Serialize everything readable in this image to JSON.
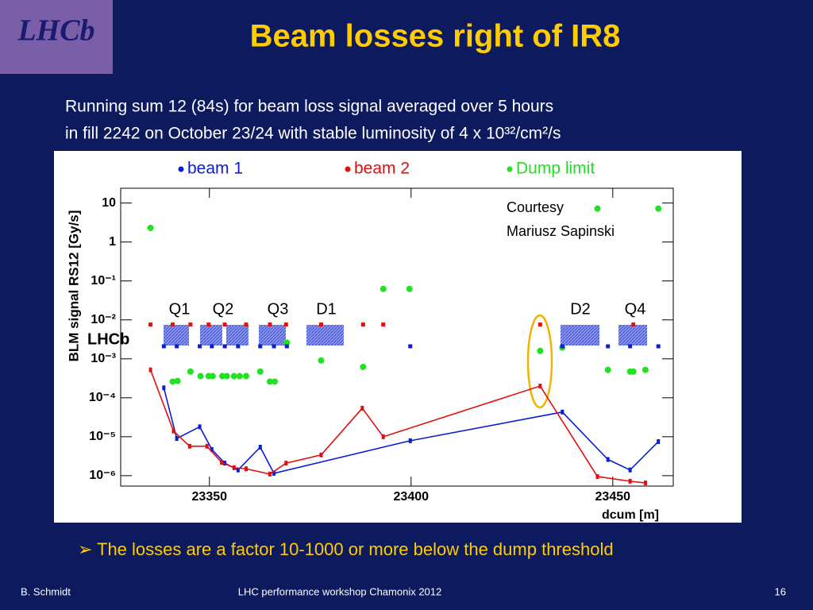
{
  "logo": "LHCb",
  "title": "Beam losses right of IR8",
  "subtitle": [
    "Running sum 12 (84s) for beam loss signal averaged over 5 hours",
    "in fill 2242 on October 23/24 with stable luminosity of 4 x 10³²/cm²/s"
  ],
  "chart_data": {
    "type": "line",
    "x_label": "dcum [m]",
    "y_label": "BLM signal RS12 [Gy/s]",
    "log_y": true,
    "xlim": [
      23328,
      23465
    ],
    "ylim": [
      5.4e-07,
      24
    ],
    "xticks": [
      23350,
      23400,
      23450
    ],
    "yticks": [
      {
        "value": 1e-06,
        "label": "10⁻⁶"
      },
      {
        "value": 1e-05,
        "label": "10⁻⁵"
      },
      {
        "value": 0.0001,
        "label": "10⁻⁴"
      },
      {
        "value": 0.001,
        "label": "10⁻³"
      },
      {
        "value": 0.01,
        "label": "10⁻²"
      },
      {
        "value": 0.1,
        "label": "10⁻¹"
      },
      1,
      10
    ],
    "annotations": [
      "Q1",
      "Q2",
      "Q3",
      "D1",
      "D2",
      "Q4",
      "Courtesy",
      "Mariusz Sapinski",
      "LHCb"
    ],
    "series": [
      {
        "name": "beam 1",
        "color": "#0a1ed2",
        "mode": "line",
        "x": [
          23338.7,
          23341.9,
          23347.6,
          23350.6,
          23353.8,
          23357.1,
          23362.6,
          23366.0,
          23399.8,
          23437.5,
          23448.8,
          23454.3,
          23461.3
        ],
        "values": [
          0.00018,
          9e-06,
          1.8e-05,
          4.7e-06,
          2.1e-06,
          1.4e-06,
          5.4e-06,
          1.15e-06,
          7.9e-06,
          4.3e-05,
          2.6e-06,
          1.4e-06,
          7.5e-06
        ]
      },
      {
        "name": "beam 2",
        "color": "#e01010",
        "mode": "line",
        "x": [
          23335.4,
          23341.1,
          23345.1,
          23349.4,
          23353.0,
          23356.1,
          23359.1,
          23365.0,
          23369.0,
          23377.7,
          23387.9,
          23393.1,
          23432.0,
          23446.2,
          23454.3,
          23458.1
        ],
        "values": [
          0.00052,
          1.4e-05,
          5.7e-06,
          5.7e-06,
          2.2e-06,
          1.6e-06,
          1.5e-06,
          1.1e-06,
          2.1e-06,
          3.4e-06,
          5.4e-05,
          1e-05,
          0.0002,
          9.5e-07,
          7.2e-07,
          6.5e-07
        ]
      },
      {
        "name": "Dump limit",
        "color": "#22e022",
        "mode": "points",
        "x": [
          23335.4,
          23340.9,
          23342.1,
          23345.3,
          23347.8,
          23349.8,
          23350.8,
          23353.2,
          23354.3,
          23356.1,
          23357.5,
          23359.1,
          23362.6,
          23365.0,
          23366.2,
          23369.2,
          23377.7,
          23388.1,
          23393.1,
          23399.6,
          23432.0,
          23437.5,
          23446.2,
          23448.8,
          23454.3,
          23455.1,
          23458.1,
          23461.3
        ],
        "values": [
          2.3,
          0.00026,
          0.00027,
          0.00047,
          0.00036,
          0.00036,
          0.00036,
          0.00036,
          0.00036,
          0.00036,
          0.00036,
          0.00036,
          0.00047,
          0.00026,
          0.00026,
          0.0026,
          0.00091,
          0.00062,
          0.0625,
          0.0625,
          0.0016,
          0.00195,
          7.2,
          0.00052,
          0.00047,
          0.00047,
          0.00052,
          7.2
        ]
      },
      {
        "color": "#e01010",
        "mode": "squares",
        "x": [
          23335.4,
          23340.9,
          23345.3,
          23349.8,
          23353.8,
          23359.1,
          23365.0,
          23369.0,
          23377.7,
          23388.1,
          23393.1,
          23432.0,
          23455.1
        ],
        "values": [
          0.0076,
          0.0076,
          0.0076,
          0.0076,
          0.0076,
          0.0076,
          0.0076,
          0.0076,
          0.0076,
          0.0076,
          0.0076,
          0.0076,
          0.0076
        ]
      },
      {
        "color": "#0a1ed2",
        "mode": "squares",
        "x": [
          23338.7,
          23341.9,
          23347.6,
          23350.6,
          23353.8,
          23357.1,
          23362.6,
          23366.0,
          23369.2,
          23399.8,
          23437.5,
          23448.8,
          23454.3,
          23461.3
        ],
        "values": [
          0.0021,
          0.0021,
          0.0021,
          0.0021,
          0.0021,
          0.0021,
          0.0021,
          0.0021,
          0.0021,
          0.0021,
          0.0021,
          0.0021,
          0.0021,
          0.0021
        ]
      }
    ]
  },
  "bullet": "The losses are a factor 10-1000 or more below the dump threshold",
  "footer": {
    "left": "B. Schmidt",
    "center": "LHC performance workshop Chamonix 2012",
    "right": "16"
  }
}
